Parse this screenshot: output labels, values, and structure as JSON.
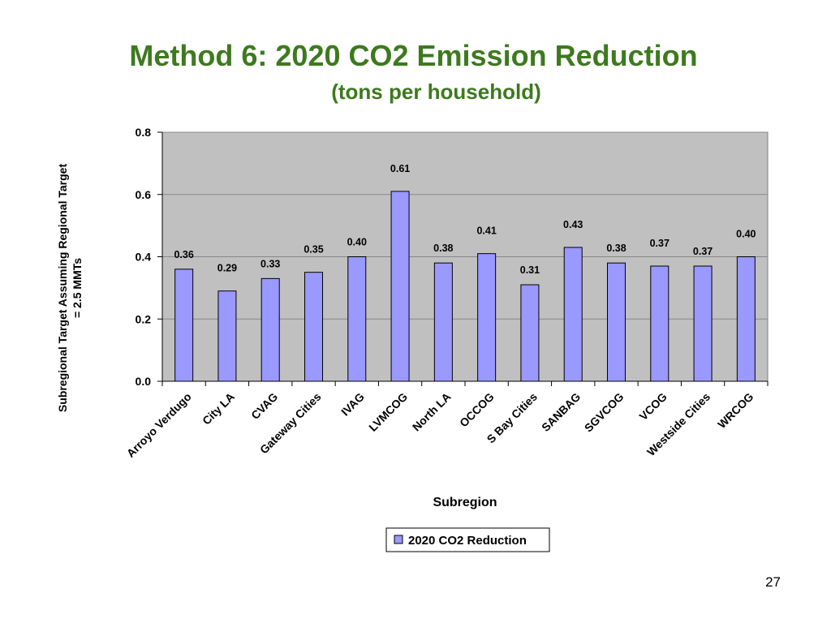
{
  "slide": {
    "title": "Method 6: 2020 CO2 Emission Reduction",
    "subtitle": "(tons per household)",
    "page_number": "27"
  },
  "colors": {
    "title": "#3d7a1e",
    "bar_fill": "#9999ff",
    "plot_background": "#c0c0c0",
    "gridline": "#888888"
  },
  "chart_data": {
    "type": "bar",
    "categories": [
      "Arroyo Verdugo",
      "City LA",
      "CVAG",
      "Gateway Cities",
      "IVAG",
      "LVMCOG",
      "North LA",
      "OCCOG",
      "S Bay Cities",
      "SANBAG",
      "SGVCOG",
      "VCOG",
      "Westside Cities",
      "WRCOG"
    ],
    "series": [
      {
        "name": "2020 CO2 Reduction",
        "values": [
          0.36,
          0.29,
          0.33,
          0.35,
          0.4,
          0.61,
          0.38,
          0.41,
          0.31,
          0.43,
          0.38,
          0.37,
          0.37,
          0.4
        ],
        "labels": [
          "0.36",
          "0.29",
          "0.33",
          "0.35",
          "0.40",
          "0.61",
          "0.38",
          "0.41",
          "0.31",
          "0.43",
          "0.38",
          "0.37",
          "0.37",
          "0.40"
        ]
      }
    ],
    "xlabel": "Subregion",
    "ylabel_lines": [
      "Subregional Target Assuming Regional Target",
      "= 2.5 MMTs"
    ],
    "ylim": [
      0,
      0.8
    ],
    "yticks": [
      0.0,
      0.2,
      0.4,
      0.6,
      0.8
    ],
    "ytick_labels": [
      "0.0",
      "0.2",
      "0.4",
      "0.6",
      "0.8"
    ],
    "grid": true,
    "legend": "bottom"
  }
}
